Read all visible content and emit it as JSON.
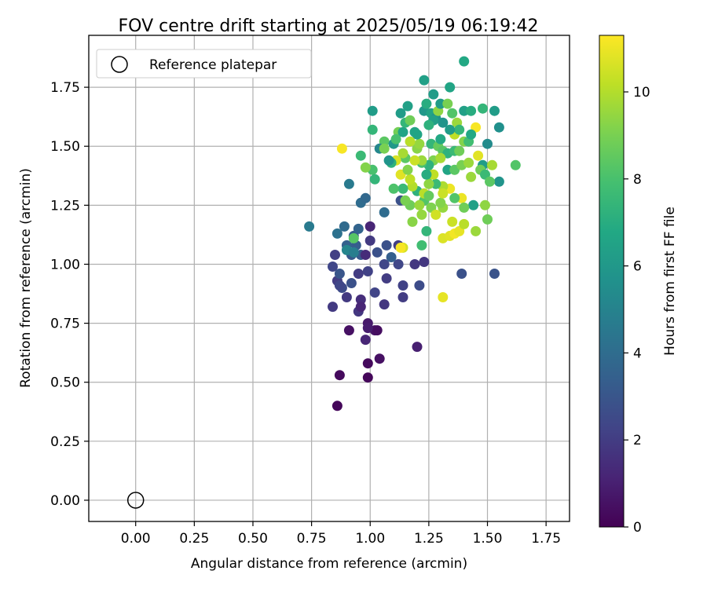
{
  "chart_data": {
    "type": "scatter",
    "title": "FOV centre drift starting at 2025/05/19 06:19:42",
    "xlabel": "Angular distance from reference (arcmin)",
    "ylabel": "Rotation from reference (arcmin)",
    "xlim": [
      -0.2,
      1.85
    ],
    "ylim": [
      -0.09,
      1.97
    ],
    "xticks": [
      "0.00",
      "0.25",
      "0.50",
      "0.75",
      "1.00",
      "1.25",
      "1.50",
      "1.75"
    ],
    "yticks": [
      "0.00",
      "0.25",
      "0.50",
      "0.75",
      "1.00",
      "1.25",
      "1.50",
      "1.75"
    ],
    "grid": true,
    "legend": {
      "position": "top-left",
      "label": "Reference platepar"
    },
    "reference_point": {
      "x": 0.0,
      "y": 0.0
    },
    "colorbar": {
      "label": "Hours from first FF file",
      "min": 0,
      "max": 11.3,
      "ticks": [
        "0",
        "2",
        "4",
        "6",
        "8",
        "10"
      ],
      "colormap": "viridis"
    },
    "points": [
      [
        0.86,
        0.4,
        0.2
      ],
      [
        0.87,
        0.53,
        0.3
      ],
      [
        0.99,
        0.52,
        0.2
      ],
      [
        0.99,
        0.58,
        0.3
      ],
      [
        1.04,
        0.6,
        0.5
      ],
      [
        1.2,
        0.65,
        1.0
      ],
      [
        0.91,
        0.72,
        0.5
      ],
      [
        1.02,
        0.72,
        0.6
      ],
      [
        1.03,
        0.72,
        0.4
      ],
      [
        0.98,
        0.68,
        1.2
      ],
      [
        0.99,
        0.75,
        0.8
      ],
      [
        0.99,
        0.73,
        0.9
      ],
      [
        0.96,
        0.85,
        1.5
      ],
      [
        0.95,
        0.8,
        1.8
      ],
      [
        0.9,
        0.86,
        1.9
      ],
      [
        0.84,
        0.82,
        1.9
      ],
      [
        0.96,
        0.82,
        1.2
      ],
      [
        1.02,
        0.88,
        2.3
      ],
      [
        1.06,
        0.83,
        1.8
      ],
      [
        1.14,
        0.86,
        2.0
      ],
      [
        1.21,
        0.91,
        2.6
      ],
      [
        1.14,
        0.91,
        2.2
      ],
      [
        0.88,
        0.9,
        2.6
      ],
      [
        0.86,
        0.93,
        2.0
      ],
      [
        0.92,
        0.92,
        2.8
      ],
      [
        0.95,
        0.96,
        2.0
      ],
      [
        0.99,
        0.97,
        2.2
      ],
      [
        1.07,
        0.94,
        2.0
      ],
      [
        0.84,
        0.99,
        2.4
      ],
      [
        0.87,
        0.96,
        3.0
      ],
      [
        1.06,
        1.0,
        2.4
      ],
      [
        1.12,
        1.0,
        2.4
      ],
      [
        1.19,
        1.0,
        1.8
      ],
      [
        1.23,
        1.01,
        1.8
      ],
      [
        0.85,
        1.04,
        2.1
      ],
      [
        0.92,
        1.04,
        3.1
      ],
      [
        0.96,
        1.04,
        3.2
      ],
      [
        0.98,
        1.04,
        1.4
      ],
      [
        1.03,
        1.05,
        2.8
      ],
      [
        1.09,
        1.03,
        3.4
      ],
      [
        1.07,
        1.08,
        2.8
      ],
      [
        1.0,
        1.1,
        1.9
      ],
      [
        1.0,
        1.16,
        1.2
      ],
      [
        1.12,
        1.08,
        2.1
      ],
      [
        0.94,
        1.08,
        3.3
      ],
      [
        0.9,
        1.08,
        3.5
      ],
      [
        0.93,
        1.12,
        3.2
      ],
      [
        0.89,
        1.16,
        3.9
      ],
      [
        0.86,
        1.13,
        4.2
      ],
      [
        0.95,
        1.15,
        3.6
      ],
      [
        0.74,
        1.16,
        4.6
      ],
      [
        0.96,
        1.26,
        4.0
      ],
      [
        0.98,
        1.28,
        3.8
      ],
      [
        1.06,
        1.22,
        4.0
      ],
      [
        0.91,
        1.34,
        4.6
      ],
      [
        1.13,
        1.27,
        2.8
      ],
      [
        0.93,
        1.11,
        8.3
      ],
      [
        0.9,
        1.06,
        5.1
      ],
      [
        0.93,
        1.05,
        4.8
      ],
      [
        0.87,
        0.91,
        2.4
      ],
      [
        1.14,
        1.07,
        10.6
      ],
      [
        1.13,
        1.07,
        11.2
      ],
      [
        1.31,
        0.86,
        10.9
      ],
      [
        1.39,
        0.96,
        2.8
      ],
      [
        1.53,
        0.96,
        2.9
      ],
      [
        1.22,
        1.08,
        7.8
      ],
      [
        1.31,
        1.11,
        10.7
      ],
      [
        1.34,
        1.12,
        10.8
      ],
      [
        1.36,
        1.13,
        11.1
      ],
      [
        1.38,
        1.14,
        10.9
      ],
      [
        1.45,
        1.14,
        9.6
      ],
      [
        1.4,
        1.17,
        10.1
      ],
      [
        1.35,
        1.18,
        10.4
      ],
      [
        1.5,
        1.19,
        8.8
      ],
      [
        1.24,
        1.14,
        7.4
      ],
      [
        1.18,
        1.18,
        9.3
      ],
      [
        1.22,
        1.21,
        9.5
      ],
      [
        1.17,
        1.25,
        8.8
      ],
      [
        1.26,
        1.24,
        9.1
      ],
      [
        1.31,
        1.24,
        9.5
      ],
      [
        1.23,
        1.27,
        8.2
      ],
      [
        1.2,
        1.31,
        7.2
      ],
      [
        1.18,
        1.33,
        10.0
      ],
      [
        1.13,
        1.38,
        10.8
      ],
      [
        1.14,
        1.32,
        7.6
      ],
      [
        1.1,
        1.32,
        8.1
      ],
      [
        1.17,
        1.36,
        10.2
      ],
      [
        1.16,
        1.4,
        9.2
      ],
      [
        1.15,
        1.45,
        8.4
      ],
      [
        1.11,
        1.44,
        10.6
      ],
      [
        1.09,
        1.43,
        7.2
      ],
      [
        1.01,
        1.4,
        8.0
      ],
      [
        0.98,
        1.41,
        9.2
      ],
      [
        0.96,
        1.46,
        7.6
      ],
      [
        0.88,
        1.49,
        11.2
      ],
      [
        1.02,
        1.36,
        7.4
      ],
      [
        1.06,
        1.52,
        8.4
      ],
      [
        1.01,
        1.57,
        7.4
      ],
      [
        1.01,
        1.65,
        6.2
      ],
      [
        1.04,
        1.49,
        5.2
      ],
      [
        1.08,
        1.44,
        5.8
      ],
      [
        1.1,
        1.51,
        6.0
      ],
      [
        1.12,
        1.56,
        8.9
      ],
      [
        1.14,
        1.56,
        6.6
      ],
      [
        1.15,
        1.6,
        7.4
      ],
      [
        1.17,
        1.61,
        8.8
      ],
      [
        1.16,
        1.67,
        6.4
      ],
      [
        1.13,
        1.64,
        6.2
      ],
      [
        1.19,
        1.56,
        6.6
      ],
      [
        1.23,
        1.65,
        6.0
      ],
      [
        1.23,
        1.78,
        6.4
      ],
      [
        1.24,
        1.68,
        7.0
      ],
      [
        1.26,
        1.64,
        6.6
      ],
      [
        1.27,
        1.72,
        6.2
      ],
      [
        1.28,
        1.62,
        5.8
      ],
      [
        1.29,
        1.65,
        9.4
      ],
      [
        1.3,
        1.68,
        6.2
      ],
      [
        1.33,
        1.68,
        9.0
      ],
      [
        1.34,
        1.75,
        6.6
      ],
      [
        1.35,
        1.64,
        8.2
      ],
      [
        1.37,
        1.6,
        9.6
      ],
      [
        1.36,
        1.55,
        10.2
      ],
      [
        1.4,
        1.65,
        6.4
      ],
      [
        1.43,
        1.65,
        7.0
      ],
      [
        1.45,
        1.58,
        11.2
      ],
      [
        1.4,
        1.86,
        6.8
      ],
      [
        1.48,
        1.66,
        7.4
      ],
      [
        1.53,
        1.65,
        6.2
      ],
      [
        1.55,
        1.58,
        5.6
      ],
      [
        1.5,
        1.51,
        5.4
      ],
      [
        1.48,
        1.42,
        6.2
      ],
      [
        1.46,
        1.46,
        10.8
      ],
      [
        1.47,
        1.4,
        8.8
      ],
      [
        1.52,
        1.42,
        9.8
      ],
      [
        1.49,
        1.38,
        7.6
      ],
      [
        1.55,
        1.35,
        5.8
      ],
      [
        1.51,
        1.35,
        8.4
      ],
      [
        1.43,
        1.37,
        9.6
      ],
      [
        1.44,
        1.25,
        6.4
      ],
      [
        1.49,
        1.25,
        9.4
      ],
      [
        1.39,
        1.28,
        11.0
      ],
      [
        1.36,
        1.28,
        8.2
      ],
      [
        1.4,
        1.24,
        8.8
      ],
      [
        1.34,
        1.32,
        11.0
      ],
      [
        1.31,
        1.33,
        9.9
      ],
      [
        1.28,
        1.34,
        7.6
      ],
      [
        1.25,
        1.34,
        9.4
      ],
      [
        1.26,
        1.38,
        8.8
      ],
      [
        1.27,
        1.38,
        10.2
      ],
      [
        1.27,
        1.44,
        9.1
      ],
      [
        1.25,
        1.42,
        7.2
      ],
      [
        1.22,
        1.43,
        8.0
      ],
      [
        1.2,
        1.49,
        9.3
      ],
      [
        1.21,
        1.51,
        9.5
      ],
      [
        1.26,
        1.51,
        7.4
      ],
      [
        1.29,
        1.5,
        8.6
      ],
      [
        1.3,
        1.53,
        6.8
      ],
      [
        1.31,
        1.48,
        8.3
      ],
      [
        1.33,
        1.47,
        7.2
      ],
      [
        1.36,
        1.48,
        7.6
      ],
      [
        1.38,
        1.48,
        8.8
      ],
      [
        1.4,
        1.52,
        9.2
      ],
      [
        1.42,
        1.52,
        7.8
      ],
      [
        1.43,
        1.55,
        6.8
      ],
      [
        1.38,
        1.57,
        7.4
      ],
      [
        1.34,
        1.57,
        6.2
      ],
      [
        1.31,
        1.6,
        5.8
      ],
      [
        1.27,
        1.61,
        6.4
      ],
      [
        1.25,
        1.59,
        7.2
      ],
      [
        1.2,
        1.55,
        6.6
      ],
      [
        1.22,
        1.44,
        9.6
      ],
      [
        1.24,
        1.38,
        7.0
      ],
      [
        1.33,
        1.4,
        6.6
      ],
      [
        1.36,
        1.4,
        8.4
      ],
      [
        1.39,
        1.42,
        9.0
      ],
      [
        1.42,
        1.43,
        9.6
      ],
      [
        1.62,
        1.42,
        8.2
      ],
      [
        1.3,
        1.45,
        9.8
      ],
      [
        1.17,
        1.52,
        10.1
      ],
      [
        1.19,
        1.44,
        10.4
      ],
      [
        1.06,
        1.49,
        9.0
      ],
      [
        1.14,
        1.47,
        9.8
      ],
      [
        1.11,
        1.53,
        8.0
      ],
      [
        1.23,
        1.3,
        10.1
      ],
      [
        1.15,
        1.27,
        9.0
      ],
      [
        1.3,
        1.26,
        9.2
      ],
      [
        1.31,
        1.3,
        10.4
      ],
      [
        1.21,
        1.25,
        9.6
      ],
      [
        1.28,
        1.21,
        10.5
      ],
      [
        1.25,
        1.29,
        8.6
      ]
    ]
  }
}
